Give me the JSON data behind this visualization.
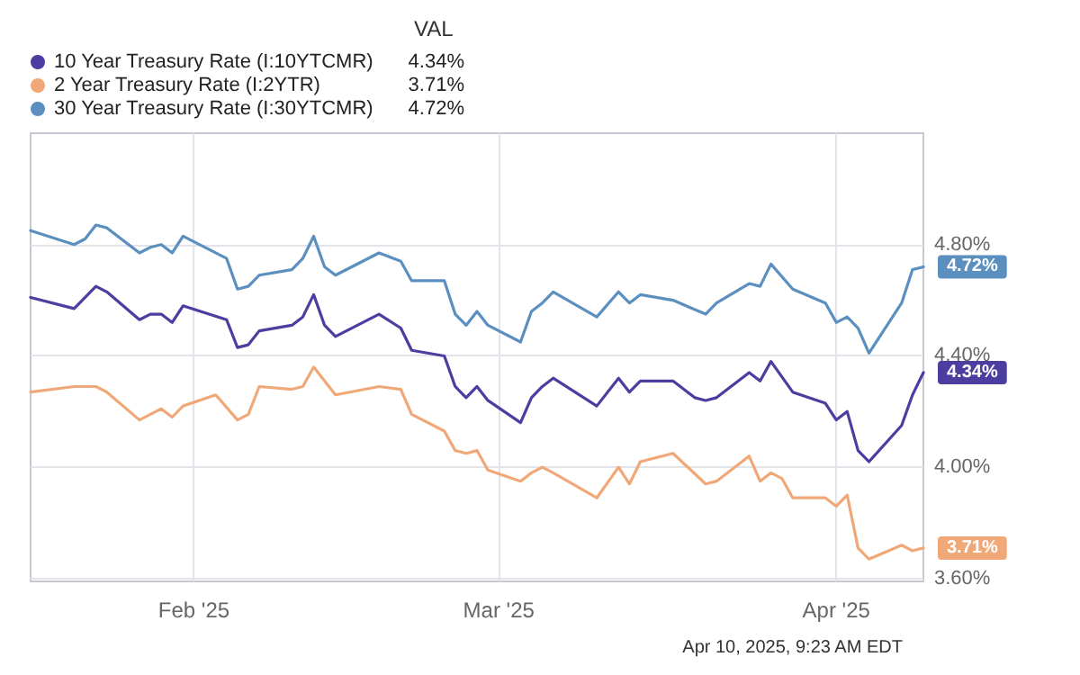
{
  "chart_data": {
    "type": "line",
    "legend": "top left",
    "legend_title": "VAL",
    "grid": true,
    "marker": "none",
    "line_style": "solid",
    "xlim": [
      "2025-01-17",
      "2025-04-09"
    ],
    "xticks": [
      {
        "value": "2025-02-01",
        "label": "Feb '25"
      },
      {
        "value": "2025-03-01",
        "label": "Mar '25"
      },
      {
        "value": "2025-04-01",
        "label": "Apr '25"
      }
    ],
    "ylim": [
      3.59,
      5.2
    ],
    "yticks": [
      {
        "value": 3.6,
        "label": "3.60%"
      },
      {
        "value": 4.0,
        "label": "4.00%"
      },
      {
        "value": 4.4,
        "label": "4.40%"
      },
      {
        "value": 4.8,
        "label": "4.80%"
      }
    ],
    "annotations": [
      "Apr 10, 2025, 9:23 AM EDT"
    ],
    "series": [
      {
        "name": "10 Year Treasury Rate (I:10YTCMR)",
        "color": "#4b3ea0",
        "x": [
          "2025-01-17",
          "2025-01-21",
          "2025-01-23",
          "2025-01-24",
          "2025-01-27",
          "2025-01-28",
          "2025-01-29",
          "2025-01-30",
          "2025-01-31",
          "2025-02-04",
          "2025-02-05",
          "2025-02-06",
          "2025-02-07",
          "2025-02-10",
          "2025-02-11",
          "2025-02-12",
          "2025-02-13",
          "2025-02-14",
          "2025-02-18",
          "2025-02-20",
          "2025-02-21",
          "2025-02-24",
          "2025-02-25",
          "2025-02-26",
          "2025-02-27",
          "2025-02-28",
          "2025-03-03",
          "2025-03-04",
          "2025-03-05",
          "2025-03-06",
          "2025-03-10",
          "2025-03-12",
          "2025-03-13",
          "2025-03-14",
          "2025-03-17",
          "2025-03-19",
          "2025-03-20",
          "2025-03-21",
          "2025-03-24",
          "2025-03-25",
          "2025-03-26",
          "2025-03-28",
          "2025-03-31",
          "2025-04-01",
          "2025-04-02",
          "2025-04-03",
          "2025-04-04",
          "2025-04-07",
          "2025-04-08",
          "2025-04-09"
        ],
        "values": [
          4.61,
          4.57,
          4.65,
          4.63,
          4.53,
          4.55,
          4.55,
          4.52,
          4.58,
          4.53,
          4.43,
          4.44,
          4.49,
          4.51,
          4.54,
          4.62,
          4.51,
          4.47,
          4.55,
          4.5,
          4.42,
          4.4,
          4.29,
          4.25,
          4.29,
          4.24,
          4.16,
          4.25,
          4.29,
          4.32,
          4.22,
          4.32,
          4.27,
          4.31,
          4.31,
          4.25,
          4.24,
          4.25,
          4.34,
          4.31,
          4.38,
          4.27,
          4.23,
          4.17,
          4.2,
          4.06,
          4.02,
          4.15,
          4.26,
          4.34
        ],
        "value_labels": [
          null,
          null,
          null,
          null,
          null,
          null,
          null,
          null,
          null,
          null,
          null,
          null,
          null,
          null,
          null,
          null,
          null,
          null,
          null,
          null,
          null,
          null,
          null,
          null,
          null,
          null,
          null,
          null,
          null,
          null,
          null,
          null,
          null,
          null,
          null,
          null,
          null,
          null,
          null,
          null,
          null,
          null,
          null,
          null,
          null,
          null,
          null,
          null,
          null,
          "4.34%"
        ]
      },
      {
        "name": "2 Year Treasury Rate (I:2YTR)",
        "color": "#f0a878",
        "x": [
          "2025-01-17",
          "2025-01-21",
          "2025-01-23",
          "2025-01-24",
          "2025-01-27",
          "2025-01-28",
          "2025-01-29",
          "2025-01-30",
          "2025-01-31",
          "2025-02-03",
          "2025-02-05",
          "2025-02-06",
          "2025-02-07",
          "2025-02-10",
          "2025-02-11",
          "2025-02-12",
          "2025-02-13",
          "2025-02-14",
          "2025-02-18",
          "2025-02-20",
          "2025-02-21",
          "2025-02-24",
          "2025-02-25",
          "2025-02-26",
          "2025-02-27",
          "2025-02-28",
          "2025-03-03",
          "2025-03-04",
          "2025-03-05",
          "2025-03-06",
          "2025-03-10",
          "2025-03-12",
          "2025-03-13",
          "2025-03-14",
          "2025-03-17",
          "2025-03-20",
          "2025-03-21",
          "2025-03-24",
          "2025-03-25",
          "2025-03-26",
          "2025-03-27",
          "2025-03-28",
          "2025-03-31",
          "2025-04-01",
          "2025-04-02",
          "2025-04-03",
          "2025-04-04",
          "2025-04-07",
          "2025-04-08",
          "2025-04-09"
        ],
        "values": [
          4.27,
          4.29,
          4.29,
          4.27,
          4.17,
          4.19,
          4.21,
          4.18,
          4.22,
          4.26,
          4.17,
          4.19,
          4.29,
          4.28,
          4.29,
          4.36,
          4.31,
          4.26,
          4.29,
          4.28,
          4.19,
          4.13,
          4.06,
          4.05,
          4.06,
          3.99,
          3.95,
          3.98,
          4.0,
          3.98,
          3.89,
          4.0,
          3.94,
          4.02,
          4.05,
          3.94,
          3.95,
          4.04,
          3.95,
          3.98,
          3.96,
          3.89,
          3.89,
          3.86,
          3.9,
          3.71,
          3.67,
          3.72,
          3.7,
          3.71
        ],
        "value_labels": [
          null,
          null,
          null,
          null,
          null,
          null,
          null,
          null,
          null,
          null,
          null,
          null,
          null,
          null,
          null,
          null,
          null,
          null,
          null,
          null,
          null,
          null,
          null,
          null,
          null,
          null,
          null,
          null,
          null,
          null,
          null,
          null,
          null,
          null,
          null,
          null,
          null,
          null,
          null,
          null,
          null,
          null,
          null,
          null,
          null,
          null,
          null,
          null,
          null,
          "3.71%"
        ]
      },
      {
        "name": "30 Year Treasury Rate (I:30YTCMR)",
        "color": "#5b8fc0",
        "x": [
          "2025-01-17",
          "2025-01-21",
          "2025-01-22",
          "2025-01-23",
          "2025-01-24",
          "2025-01-27",
          "2025-01-28",
          "2025-01-29",
          "2025-01-30",
          "2025-01-31",
          "2025-02-04",
          "2025-02-05",
          "2025-02-06",
          "2025-02-07",
          "2025-02-10",
          "2025-02-11",
          "2025-02-12",
          "2025-02-13",
          "2025-02-14",
          "2025-02-18",
          "2025-02-20",
          "2025-02-21",
          "2025-02-24",
          "2025-02-25",
          "2025-02-26",
          "2025-02-27",
          "2025-02-28",
          "2025-03-03",
          "2025-03-04",
          "2025-03-05",
          "2025-03-06",
          "2025-03-10",
          "2025-03-12",
          "2025-03-13",
          "2025-03-14",
          "2025-03-17",
          "2025-03-20",
          "2025-03-21",
          "2025-03-24",
          "2025-03-25",
          "2025-03-26",
          "2025-03-28",
          "2025-03-31",
          "2025-04-01",
          "2025-04-02",
          "2025-04-03",
          "2025-04-04",
          "2025-04-07",
          "2025-04-08",
          "2025-04-09"
        ],
        "values": [
          4.85,
          4.8,
          4.82,
          4.87,
          4.86,
          4.77,
          4.79,
          4.8,
          4.77,
          4.83,
          4.75,
          4.64,
          4.65,
          4.69,
          4.71,
          4.75,
          4.83,
          4.72,
          4.69,
          4.77,
          4.74,
          4.67,
          4.67,
          4.55,
          4.51,
          4.56,
          4.51,
          4.45,
          4.56,
          4.59,
          4.63,
          4.54,
          4.63,
          4.59,
          4.62,
          4.6,
          4.55,
          4.59,
          4.66,
          4.65,
          4.73,
          4.64,
          4.59,
          4.52,
          4.54,
          4.5,
          4.41,
          4.59,
          4.71,
          4.72
        ],
        "value_labels": [
          null,
          null,
          null,
          null,
          null,
          null,
          null,
          null,
          null,
          null,
          null,
          null,
          null,
          null,
          null,
          null,
          null,
          null,
          null,
          null,
          null,
          null,
          null,
          null,
          null,
          null,
          null,
          null,
          null,
          null,
          null,
          null,
          null,
          null,
          null,
          null,
          null,
          null,
          null,
          null,
          null,
          null,
          null,
          null,
          null,
          null,
          null,
          null,
          null,
          "4.72%"
        ]
      }
    ]
  }
}
